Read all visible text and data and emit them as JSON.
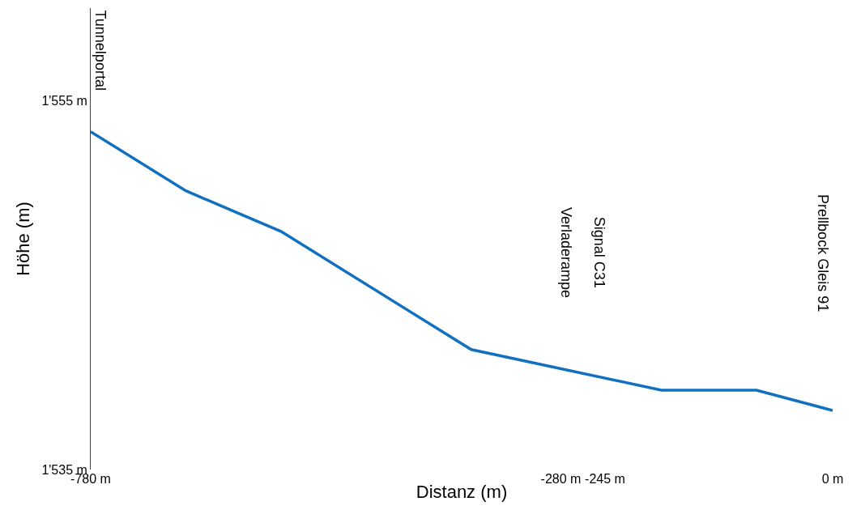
{
  "chart_data": {
    "type": "line",
    "xlabel": "Distanz (m)",
    "ylabel": "Höhe (m)",
    "x": [
      -780,
      -680,
      -580,
      -380,
      -180,
      -80,
      0
    ],
    "series": [
      {
        "color": "#1170c0",
        "values": [
          1553.3,
          1550.1,
          1547.9,
          1541.5,
          1539.3,
          1539.3,
          1538.2
        ]
      }
    ],
    "xlim": [
      -780,
      0
    ],
    "ylim": [
      1535,
      1560
    ],
    "xticks": [
      {
        "value": -780,
        "label": "-780 m"
      },
      {
        "value": -280,
        "label": "-280 m"
      },
      {
        "value": -245,
        "label": "-245 m"
      },
      {
        "value": 0,
        "label": "0 m"
      }
    ],
    "yticks": [
      {
        "value": 1535,
        "label": "1'535 m"
      },
      {
        "value": 1555,
        "label": "1'555 m"
      }
    ],
    "annotations": [
      "Tunnelportal",
      "Verladerampe",
      "Signal C31",
      "Prellbock Gleis 91"
    ],
    "marker": "none",
    "line_style": "solid"
  }
}
